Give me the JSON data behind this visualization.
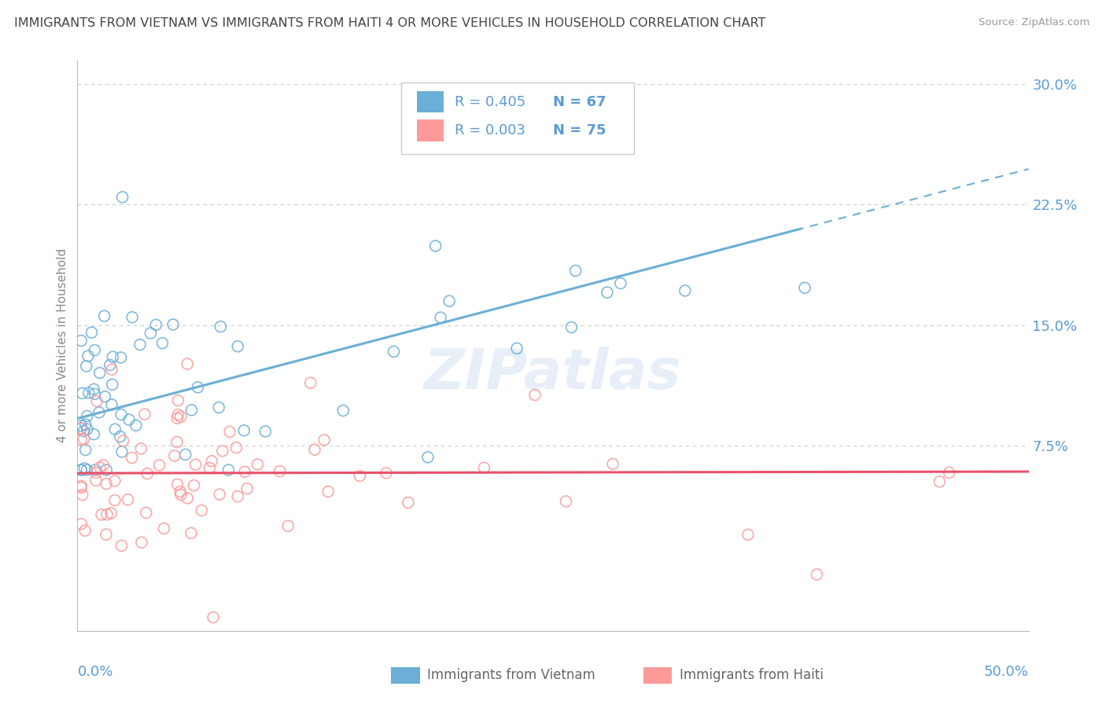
{
  "title": "IMMIGRANTS FROM VIETNAM VS IMMIGRANTS FROM HAITI 4 OR MORE VEHICLES IN HOUSEHOLD CORRELATION CHART",
  "source": "Source: ZipAtlas.com",
  "ylabel": "4 or more Vehicles in Household",
  "ylim": [
    -0.04,
    0.315
  ],
  "xlim": [
    0.0,
    0.5
  ],
  "ytick_vals": [
    0.075,
    0.15,
    0.225,
    0.3
  ],
  "ytick_labels": [
    "7.5%",
    "15.0%",
    "22.5%",
    "30.0%"
  ],
  "vietnam_color": "#6baed6",
  "haiti_color": "#fb9a99",
  "vietnam_R": 0.405,
  "vietnam_N": 67,
  "haiti_R": 0.003,
  "haiti_N": 75,
  "background_color": "#ffffff",
  "grid_color": "#cccccc",
  "title_color": "#444444",
  "axis_label_color": "#5b9bd5",
  "legend_text_color": "#222222",
  "legend_number_color": "#5b9bd5",
  "watermark_color": "#d0dff0",
  "reg_line_solid_end_viet": 0.38,
  "reg_line_dash_start_viet": 0.37
}
